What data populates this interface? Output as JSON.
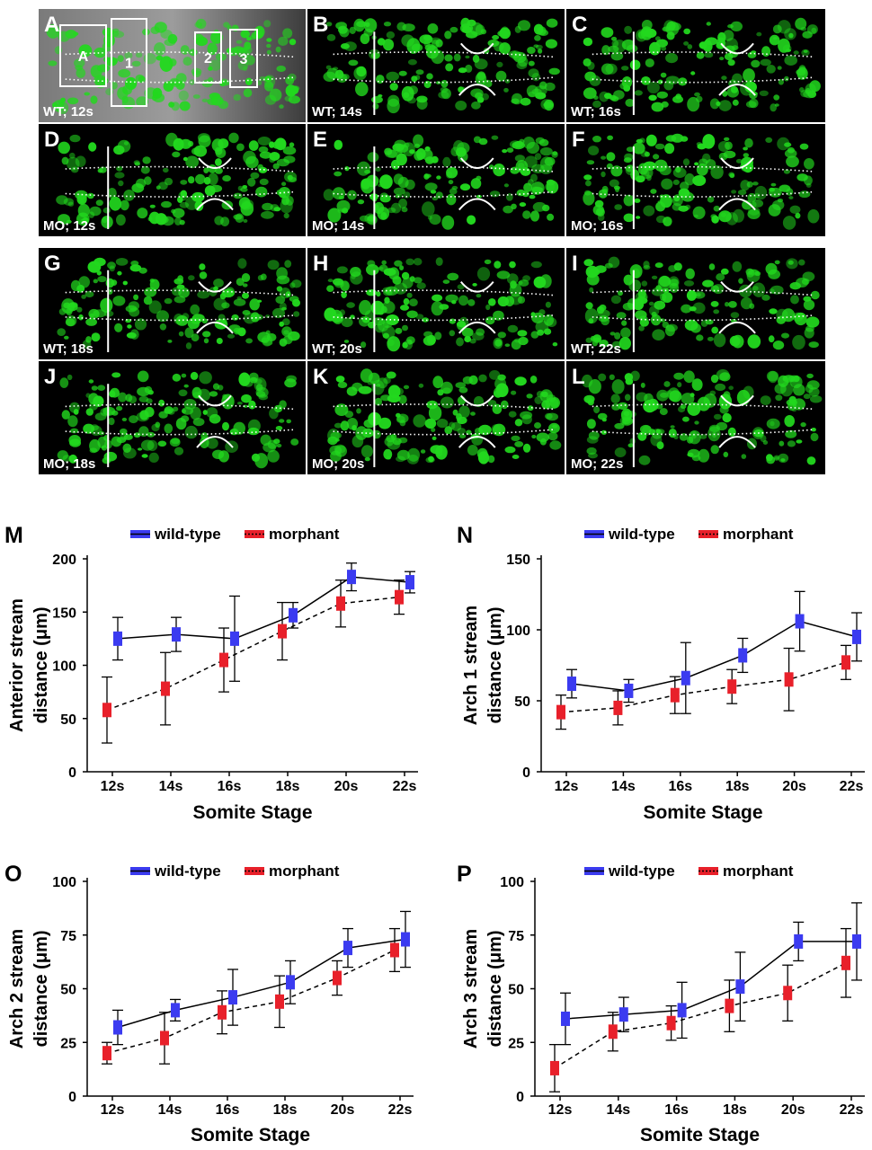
{
  "figure": {
    "top_block_labels": [
      "A",
      "B",
      "C"
    ],
    "micro_panels": [
      {
        "letter": "A",
        "caption": "WT; 12s",
        "grayscale": true
      },
      {
        "letter": "B",
        "caption": "WT; 14s"
      },
      {
        "letter": "C",
        "caption": "WT; 16s"
      },
      {
        "letter": "D",
        "caption": "MO; 12s"
      },
      {
        "letter": "E",
        "caption": "MO; 14s"
      },
      {
        "letter": "F",
        "caption": "MO; 16s"
      },
      {
        "letter": "G",
        "caption": "WT; 18s"
      },
      {
        "letter": "H",
        "caption": "WT; 20s"
      },
      {
        "letter": "I",
        "caption": "WT; 22s"
      },
      {
        "letter": "J",
        "caption": "MO; 18s"
      },
      {
        "letter": "K",
        "caption": "MO; 20s"
      },
      {
        "letter": "L",
        "caption": "MO; 22s"
      }
    ],
    "stream_box_labels": [
      "A",
      "1",
      "2",
      "3"
    ],
    "colors": {
      "background": "#000000",
      "cells": "#22d81e",
      "wild_type": "#3b3bf0",
      "morphant": "#e8202a",
      "line": "#000000"
    }
  },
  "legend": {
    "wild_type": "wild-type",
    "morphant": "morphant"
  },
  "chart_data": [
    {
      "panel": "M",
      "type": "line",
      "categories": [
        "12s",
        "14s",
        "16s",
        "18s",
        "20s",
        "22s"
      ],
      "xlabel": "Somite Stage",
      "ylabel_lines": [
        "Anterior stream",
        "distance (μm)"
      ],
      "ylim": [
        0,
        200
      ],
      "yticks": [
        "0",
        "50",
        "100",
        "150",
        "200"
      ],
      "series": [
        {
          "name": "wild-type",
          "values": [
            125,
            129,
            125,
            147,
            183,
            178
          ],
          "err": [
            20,
            16,
            40,
            12,
            13,
            10
          ],
          "style": "solid",
          "color": "#3b3bf0"
        },
        {
          "name": "morphant",
          "values": [
            58,
            78,
            105,
            132,
            158,
            164
          ],
          "err": [
            31,
            34,
            30,
            27,
            22,
            16
          ],
          "style": "dashed",
          "color": "#e8202a"
        }
      ]
    },
    {
      "panel": "N",
      "type": "line",
      "categories": [
        "12s",
        "14s",
        "16s",
        "18s",
        "20s",
        "22s"
      ],
      "xlabel": "Somite Stage",
      "ylabel_lines": [
        "Arch 1 stream",
        "distance (μm)"
      ],
      "ylim": [
        0,
        150
      ],
      "yticks": [
        "0",
        "50",
        "100",
        "150"
      ],
      "series": [
        {
          "name": "wild-type",
          "values": [
            62,
            57,
            66,
            82,
            106,
            95
          ],
          "err": [
            10,
            8,
            25,
            12,
            21,
            17
          ],
          "style": "solid",
          "color": "#3b3bf0"
        },
        {
          "name": "morphant",
          "values": [
            42,
            45,
            54,
            60,
            65,
            77
          ],
          "err": [
            12,
            12,
            13,
            12,
            22,
            12
          ],
          "style": "dashed",
          "color": "#e8202a"
        }
      ]
    },
    {
      "panel": "O",
      "type": "line",
      "categories": [
        "12s",
        "14s",
        "16s",
        "18s",
        "20s",
        "22s"
      ],
      "xlabel": "Somite Stage",
      "ylabel_lines": [
        "Arch 2 stream",
        "distance (μm)"
      ],
      "ylim": [
        0,
        100
      ],
      "yticks": [
        "0",
        "25",
        "50",
        "75",
        "100"
      ],
      "series": [
        {
          "name": "wild-type",
          "values": [
            32,
            40,
            46,
            53,
            69,
            73
          ],
          "err": [
            8,
            5,
            13,
            10,
            9,
            13
          ],
          "style": "solid",
          "color": "#3b3bf0"
        },
        {
          "name": "morphant",
          "values": [
            20,
            27,
            39,
            44,
            55,
            68
          ],
          "err": [
            5,
            12,
            10,
            12,
            8,
            10
          ],
          "style": "dashed",
          "color": "#e8202a"
        }
      ]
    },
    {
      "panel": "P",
      "type": "line",
      "categories": [
        "12s",
        "14s",
        "16s",
        "18s",
        "20s",
        "22s"
      ],
      "xlabel": "Somite Stage",
      "ylabel_lines": [
        "Arch 3 stream",
        "distance (μm)"
      ],
      "ylim": [
        0,
        100
      ],
      "yticks": [
        "0",
        "25",
        "50",
        "75",
        "100"
      ],
      "series": [
        {
          "name": "wild-type",
          "values": [
            36,
            38,
            40,
            51,
            72,
            72
          ],
          "err": [
            12,
            8,
            13,
            16,
            9,
            18
          ],
          "style": "solid",
          "color": "#3b3bf0"
        },
        {
          "name": "morphant",
          "values": [
            13,
            30,
            34,
            42,
            48,
            62
          ],
          "err": [
            11,
            9,
            8,
            12,
            13,
            16
          ],
          "style": "dashed",
          "color": "#e8202a"
        }
      ]
    }
  ]
}
